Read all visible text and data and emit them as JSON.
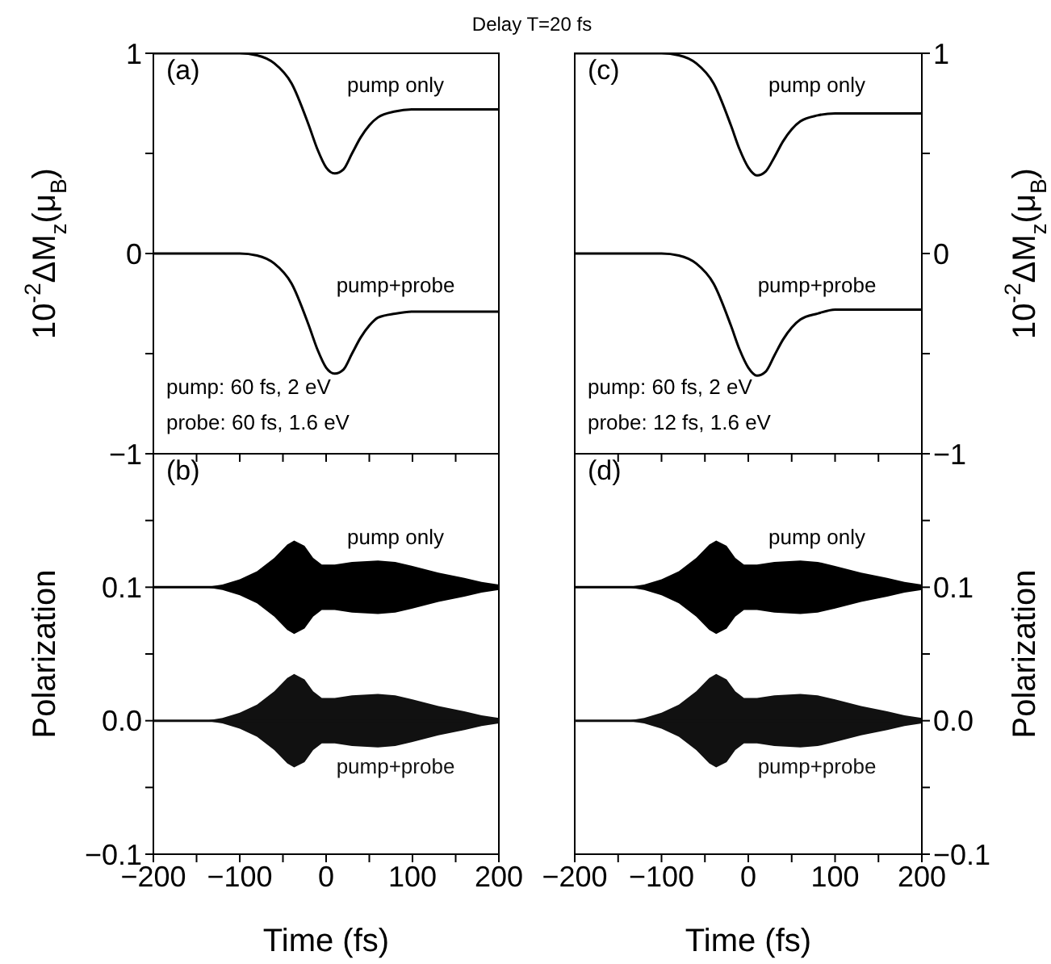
{
  "chart_data": [
    {
      "type": "line",
      "title": "Delay T=20 fs",
      "ylabel": "10$^{-2}$ΔM$_{z}$(μ$_{B}$)",
      "xlim": [
        -200,
        200
      ],
      "xticks": [
        -200,
        {
          "value": -150,
          "label": null
        },
        -100,
        {
          "value": -50,
          "label": null
        },
        0,
        {
          "value": 50,
          "label": null
        },
        100,
        {
          "value": 150,
          "label": null
        },
        200
      ],
      "ylim": [
        -1,
        1
      ],
      "yticks": [
        {
          "value": -1,
          "label": "−1"
        },
        {
          "value": -0.5,
          "label": null
        },
        0,
        {
          "value": 0.5,
          "label": null
        },
        1
      ],
      "tick_labels": "y",
      "annotations": [
        "(a)",
        "pump: 60 fs, 2 eV",
        "probe: 60 fs, 1.6 eV"
      ],
      "x": [
        -200,
        -100,
        -80,
        -60,
        -40,
        -20,
        -10,
        0,
        10,
        20,
        30,
        40,
        50,
        60,
        80,
        100,
        200
      ],
      "series": [
        {
          "name": "pump only",
          "color": "#000000",
          "values": [
            1,
            1,
            0.99,
            0.95,
            0.85,
            0.64,
            0.52,
            0.43,
            0.4,
            0.42,
            0.5,
            0.58,
            0.64,
            0.68,
            0.71,
            0.72,
            0.72
          ]
        },
        {
          "name": "pump+probe",
          "color": "#000000",
          "values": [
            0,
            0,
            -0.01,
            -0.05,
            -0.15,
            -0.36,
            -0.48,
            -0.57,
            -0.6,
            -0.58,
            -0.5,
            -0.42,
            -0.36,
            -0.32,
            -0.3,
            -0.29,
            -0.29
          ]
        }
      ]
    },
    {
      "type": "line",
      "xlabel": "Time (fs)",
      "ylabel": "Polarization",
      "xlim": [
        -200,
        200
      ],
      "xticks": [
        {
          "value": -200,
          "label": "−200"
        },
        {
          "value": -150,
          "label": null
        },
        {
          "value": -100,
          "label": "−100"
        },
        {
          "value": -50,
          "label": null
        },
        0,
        {
          "value": 50,
          "label": null
        },
        100,
        {
          "value": 150,
          "label": null
        },
        200
      ],
      "ylim": [
        -0.1,
        0.2
      ],
      "yticks": [
        {
          "value": -0.1,
          "label": "−0.1"
        },
        {
          "value": -0.05,
          "label": null
        },
        {
          "value": 0,
          "label": "0.0"
        },
        {
          "value": 0.05,
          "label": null
        },
        0.1,
        {
          "value": 0.15,
          "label": null
        },
        {
          "value": 0.2,
          "label": null
        }
      ],
      "annotations": [
        "(b)"
      ],
      "x": [
        -200,
        -140,
        -120,
        -100,
        -80,
        -60,
        -45,
        -37,
        -25,
        -15,
        -5,
        10,
        30,
        60,
        80,
        100,
        130,
        160,
        180,
        200
      ],
      "series": [
        {
          "name": "pump only",
          "color": "#000000",
          "values": [
            0.1,
            0.1,
            0.1,
            0.1,
            0.1,
            0.1,
            0.1,
            0.1,
            0.1,
            0.1,
            0.1,
            0.1,
            0.1,
            0.1,
            0.1,
            0.1,
            0.1,
            0.1,
            0.1,
            0.1
          ],
          "lower": [
            0.1,
            0.1,
            0.098,
            0.094,
            0.088,
            0.078,
            0.068,
            0.065,
            0.069,
            0.078,
            0.083,
            0.083,
            0.081,
            0.08,
            0.081,
            0.084,
            0.089,
            0.093,
            0.096,
            0.098
          ],
          "upper": [
            0.1,
            0.1,
            0.102,
            0.106,
            0.112,
            0.122,
            0.132,
            0.135,
            0.131,
            0.122,
            0.117,
            0.117,
            0.119,
            0.12,
            0.119,
            0.116,
            0.111,
            0.107,
            0.104,
            0.102
          ]
        },
        {
          "name": "pump+probe",
          "color": "#111111",
          "values": [
            0,
            0,
            0,
            0,
            0,
            0,
            0,
            0,
            0,
            0,
            0,
            0,
            0,
            0,
            0,
            0,
            0,
            0,
            0,
            0
          ],
          "lower": [
            0,
            0,
            -0.002,
            -0.006,
            -0.012,
            -0.022,
            -0.032,
            -0.035,
            -0.031,
            -0.022,
            -0.017,
            -0.017,
            -0.019,
            -0.02,
            -0.019,
            -0.016,
            -0.011,
            -0.007,
            -0.004,
            -0.002
          ],
          "upper": [
            0,
            0,
            0.002,
            0.006,
            0.012,
            0.022,
            0.032,
            0.035,
            0.031,
            0.022,
            0.017,
            0.017,
            0.019,
            0.02,
            0.019,
            0.016,
            0.011,
            0.007,
            0.004,
            0.002
          ]
        }
      ]
    },
    {
      "type": "line",
      "ylabel": "10$^{-2}$ΔM$_{z}$(μ$_{B}$)",
      "xlim": [
        -200,
        200
      ],
      "xticks": [
        -200,
        {
          "value": -150,
          "label": null
        },
        -100,
        {
          "value": -50,
          "label": null
        },
        0,
        {
          "value": 50,
          "label": null
        },
        100,
        {
          "value": 150,
          "label": null
        },
        200
      ],
      "ylim": [
        -1,
        1
      ],
      "yticks": [
        {
          "value": -1,
          "label": "−1"
        },
        {
          "value": -0.5,
          "label": null
        },
        0,
        {
          "value": 0.5,
          "label": null
        },
        1
      ],
      "tick_labels": "y",
      "annotations": [
        "(c)",
        "pump: 60 fs, 2 eV",
        "probe: 12 fs, 1.6 eV"
      ],
      "x": [
        -200,
        -100,
        -80,
        -60,
        -40,
        -20,
        -10,
        0,
        10,
        20,
        30,
        40,
        50,
        60,
        80,
        100,
        200
      ],
      "series": [
        {
          "name": "pump only",
          "color": "#000000",
          "values": [
            1,
            1,
            0.99,
            0.95,
            0.85,
            0.64,
            0.52,
            0.43,
            0.39,
            0.41,
            0.48,
            0.56,
            0.62,
            0.66,
            0.69,
            0.7,
            0.7
          ]
        },
        {
          "name": "pump+probe",
          "color": "#000000",
          "values": [
            0,
            0,
            -0.01,
            -0.05,
            -0.15,
            -0.36,
            -0.48,
            -0.57,
            -0.61,
            -0.59,
            -0.51,
            -0.43,
            -0.37,
            -0.33,
            -0.3,
            -0.28,
            -0.28
          ]
        }
      ]
    },
    {
      "type": "line",
      "xlabel": "Time (fs)",
      "ylabel": "Polarization",
      "xlim": [
        -200,
        200
      ],
      "xticks": [
        {
          "value": -200,
          "label": "−200"
        },
        {
          "value": -150,
          "label": null
        },
        {
          "value": -100,
          "label": "−100"
        },
        {
          "value": -50,
          "label": null
        },
        0,
        {
          "value": 50,
          "label": null
        },
        100,
        {
          "value": 150,
          "label": null
        },
        200
      ],
      "ylim": [
        -0.1,
        0.2
      ],
      "yticks": [
        {
          "value": -0.1,
          "label": "−0.1"
        },
        {
          "value": -0.05,
          "label": null
        },
        {
          "value": 0,
          "label": "0.0"
        },
        {
          "value": 0.05,
          "label": null
        },
        0.1,
        {
          "value": 0.15,
          "label": null
        },
        {
          "value": 0.2,
          "label": null
        }
      ],
      "annotations": [
        "(d)"
      ],
      "x": [
        -200,
        -140,
        -120,
        -100,
        -80,
        -60,
        -45,
        -37,
        -25,
        -15,
        -5,
        10,
        30,
        60,
        80,
        100,
        130,
        160,
        180,
        200
      ],
      "series": [
        {
          "name": "pump only",
          "color": "#000000",
          "values": [
            0.1,
            0.1,
            0.1,
            0.1,
            0.1,
            0.1,
            0.1,
            0.1,
            0.1,
            0.1,
            0.1,
            0.1,
            0.1,
            0.1,
            0.1,
            0.1,
            0.1,
            0.1,
            0.1,
            0.1
          ],
          "lower": [
            0.1,
            0.1,
            0.098,
            0.094,
            0.088,
            0.078,
            0.068,
            0.065,
            0.069,
            0.078,
            0.083,
            0.083,
            0.081,
            0.08,
            0.081,
            0.084,
            0.089,
            0.093,
            0.096,
            0.098
          ],
          "upper": [
            0.1,
            0.1,
            0.102,
            0.106,
            0.112,
            0.122,
            0.132,
            0.135,
            0.131,
            0.122,
            0.117,
            0.117,
            0.119,
            0.12,
            0.119,
            0.116,
            0.111,
            0.107,
            0.104,
            0.102
          ]
        },
        {
          "name": "pump+probe",
          "color": "#111111",
          "values": [
            0,
            0,
            0,
            0,
            0,
            0,
            0,
            0,
            0,
            0,
            0,
            0,
            0,
            0,
            0,
            0,
            0,
            0,
            0,
            0
          ],
          "lower": [
            0,
            0,
            -0.002,
            -0.006,
            -0.012,
            -0.022,
            -0.032,
            -0.035,
            -0.031,
            -0.022,
            -0.017,
            -0.017,
            -0.019,
            -0.02,
            -0.019,
            -0.016,
            -0.011,
            -0.007,
            -0.004,
            -0.002
          ],
          "upper": [
            0,
            0,
            0.002,
            0.006,
            0.012,
            0.022,
            0.032,
            0.035,
            0.031,
            0.022,
            0.017,
            0.017,
            0.019,
            0.02,
            0.019,
            0.016,
            0.011,
            0.007,
            0.004,
            0.002
          ]
        }
      ]
    }
  ]
}
